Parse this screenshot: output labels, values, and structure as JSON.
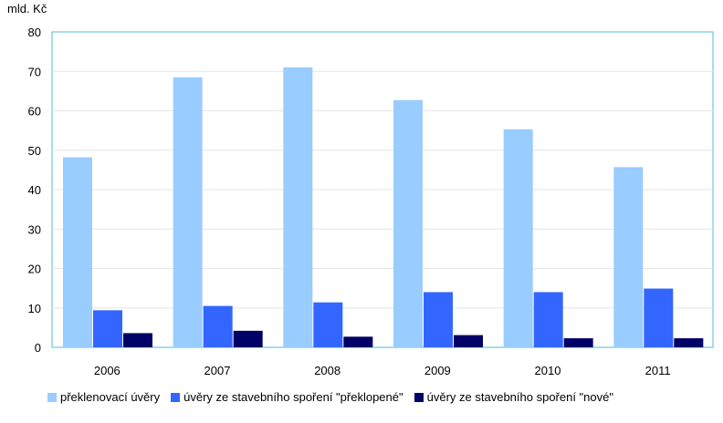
{
  "chart_data": {
    "type": "bar",
    "ylabel": "mld. Kč",
    "ylim": [
      0,
      80
    ],
    "yticks": [
      0,
      10,
      20,
      30,
      40,
      50,
      60,
      70,
      80
    ],
    "categories": [
      "2006",
      "2007",
      "2008",
      "2009",
      "2010",
      "2011"
    ],
    "grid": true,
    "legend_position": "bottom",
    "series": [
      {
        "name": "překlenovací úvěry",
        "color": "#99ccff",
        "values": [
          48.2,
          68.5,
          71.0,
          62.7,
          55.3,
          45.7
        ]
      },
      {
        "name": "úvěry ze stavebního spoření \"překlopené\"",
        "color": "#3366ff",
        "values": [
          9.4,
          10.5,
          11.4,
          14.0,
          14.0,
          14.9
        ]
      },
      {
        "name": "úvěry ze stavebního spoření \"nové\"",
        "color": "#000066",
        "values": [
          3.6,
          4.2,
          2.7,
          3.1,
          2.3,
          2.3
        ]
      }
    ]
  }
}
